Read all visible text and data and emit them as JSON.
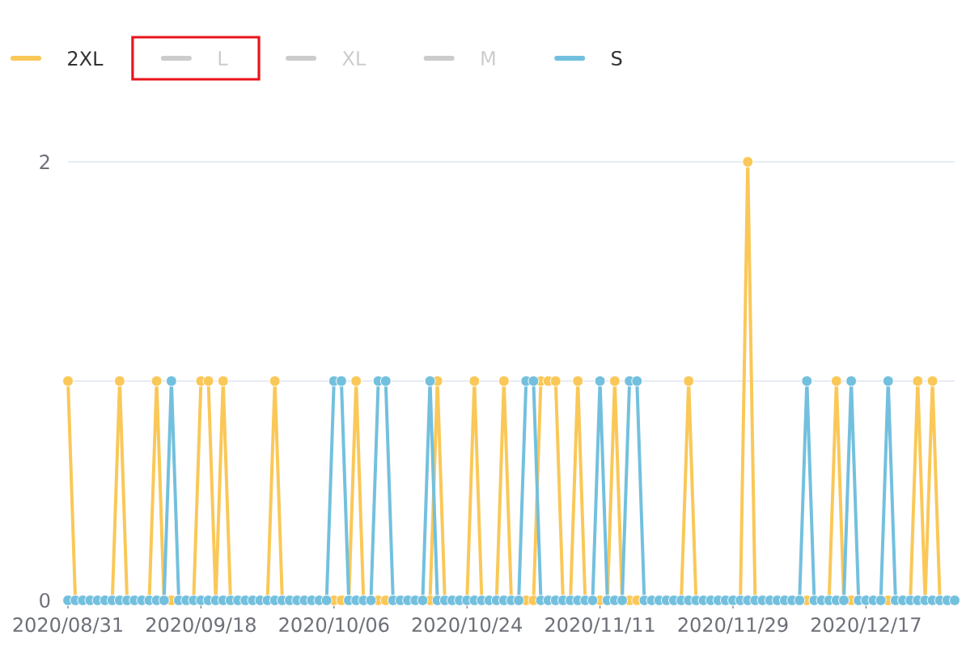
{
  "chart_data": {
    "type": "line",
    "categories": [
      "2020/08/31",
      null,
      null,
      null,
      null,
      null,
      null,
      null,
      null,
      null,
      null,
      null,
      null,
      null,
      null,
      null,
      null,
      null,
      "2020/09/18",
      null,
      null,
      null,
      null,
      null,
      null,
      null,
      null,
      null,
      null,
      null,
      null,
      null,
      null,
      null,
      null,
      null,
      "2020/10/06",
      null,
      null,
      null,
      null,
      null,
      null,
      null,
      null,
      null,
      null,
      null,
      null,
      null,
      null,
      null,
      null,
      null,
      "2020/10/24",
      null,
      null,
      null,
      null,
      null,
      null,
      null,
      null,
      null,
      null,
      null,
      null,
      null,
      null,
      null,
      null,
      null,
      "2020/11/11",
      null,
      null,
      null,
      null,
      null,
      null,
      null,
      null,
      null,
      null,
      null,
      null,
      null,
      null,
      null,
      null,
      null,
      "2020/11/29",
      null,
      null,
      null,
      null,
      null,
      null,
      null,
      null,
      null,
      null,
      null,
      null,
      null,
      null,
      null,
      null,
      null,
      "2020/12/17",
      null,
      null,
      null,
      null,
      null,
      null,
      null,
      null,
      null,
      null,
      null,
      null
    ],
    "series": [
      {
        "name": "2XL",
        "color": "#fac858",
        "values": [
          1,
          0,
          0,
          0,
          0,
          0,
          0,
          1,
          0,
          0,
          0,
          0,
          1,
          0,
          0,
          0,
          0,
          0,
          1,
          1,
          0,
          1,
          0,
          0,
          0,
          0,
          0,
          0,
          1,
          0,
          0,
          0,
          0,
          0,
          0,
          0,
          0,
          0,
          0,
          1,
          0,
          0,
          0,
          0,
          0,
          0,
          0,
          0,
          0,
          0,
          1,
          0,
          0,
          0,
          0,
          1,
          0,
          0,
          0,
          1,
          0,
          0,
          0,
          0,
          1,
          1,
          1,
          0,
          0,
          1,
          0,
          0,
          0,
          0,
          1,
          0,
          0,
          0,
          0,
          0,
          0,
          0,
          0,
          0,
          1,
          0,
          0,
          0,
          0,
          0,
          0,
          0,
          2,
          0,
          0,
          0,
          0,
          0,
          0,
          0,
          0,
          0,
          0,
          0,
          1,
          0,
          0,
          0,
          0,
          0,
          0,
          0,
          0,
          0,
          0,
          1,
          0,
          1,
          0,
          0,
          0
        ]
      },
      {
        "name": "L",
        "color": "#cccccc",
        "values": [
          null,
          null,
          null,
          null,
          null,
          null,
          null,
          null,
          null,
          null,
          null,
          null,
          null,
          null,
          null,
          null,
          null,
          null,
          null,
          null,
          null,
          null,
          null,
          null,
          null,
          null,
          null,
          null,
          null,
          null,
          null,
          null,
          null,
          null,
          null,
          null,
          null,
          null,
          null,
          null,
          null,
          null,
          null,
          null,
          null,
          null,
          null,
          null,
          null,
          null,
          null,
          null,
          null,
          null,
          null,
          null,
          null,
          null,
          null,
          null,
          null,
          null,
          null,
          null,
          null,
          null,
          null,
          null,
          null,
          null,
          null,
          null,
          null,
          null,
          null,
          null,
          null,
          null,
          null,
          null,
          null,
          null,
          null,
          null,
          null,
          null,
          null,
          null,
          null,
          null,
          null,
          null,
          null,
          null,
          null,
          null,
          null,
          null,
          null,
          null,
          null,
          null,
          null,
          null,
          null,
          null,
          null,
          null,
          null,
          null,
          null,
          null,
          null,
          null,
          null,
          null,
          null,
          null,
          null,
          null,
          null
        ]
      },
      {
        "name": "XL",
        "color": "#cccccc",
        "values": [
          null,
          null,
          null,
          null,
          null,
          null,
          null,
          null,
          null,
          null,
          null,
          null,
          null,
          null,
          null,
          null,
          null,
          null,
          null,
          null,
          null,
          null,
          null,
          null,
          null,
          null,
          null,
          null,
          null,
          null,
          null,
          null,
          null,
          null,
          null,
          null,
          null,
          null,
          null,
          null,
          null,
          null,
          null,
          null,
          null,
          null,
          null,
          null,
          null,
          null,
          null,
          null,
          null,
          null,
          null,
          null,
          null,
          null,
          null,
          null,
          null,
          null,
          null,
          null,
          null,
          null,
          null,
          null,
          null,
          null,
          null,
          null,
          null,
          null,
          null,
          null,
          null,
          null,
          null,
          null,
          null,
          null,
          null,
          null,
          null,
          null,
          null,
          null,
          null,
          null,
          null,
          null,
          null,
          null,
          null,
          null,
          null,
          null,
          null,
          null,
          null,
          null,
          null,
          null,
          null,
          null,
          null,
          null,
          null,
          null,
          null,
          null,
          null,
          null,
          null,
          null,
          null,
          null,
          null,
          null,
          null
        ]
      },
      {
        "name": "M",
        "color": "#cccccc",
        "values": [
          null,
          null,
          null,
          null,
          null,
          null,
          null,
          null,
          null,
          null,
          null,
          null,
          null,
          null,
          null,
          null,
          null,
          null,
          null,
          null,
          null,
          null,
          null,
          null,
          null,
          null,
          null,
          null,
          null,
          null,
          null,
          null,
          null,
          null,
          null,
          null,
          null,
          null,
          null,
          null,
          null,
          null,
          null,
          null,
          null,
          null,
          null,
          null,
          null,
          null,
          null,
          null,
          null,
          null,
          null,
          null,
          null,
          null,
          null,
          null,
          null,
          null,
          null,
          null,
          null,
          null,
          null,
          null,
          null,
          null,
          null,
          null,
          null,
          null,
          null,
          null,
          null,
          null,
          null,
          null,
          null,
          null,
          null,
          null,
          null,
          null,
          null,
          null,
          null,
          null,
          null,
          null,
          null,
          null,
          null,
          null,
          null,
          null,
          null,
          null,
          null,
          null,
          null,
          null,
          null,
          null,
          null,
          null,
          null,
          null,
          null,
          null,
          null,
          null,
          null,
          null,
          null,
          null,
          null,
          null,
          null
        ]
      },
      {
        "name": "S",
        "color": "#73c0de",
        "values": [
          0,
          0,
          0,
          0,
          0,
          0,
          0,
          0,
          0,
          0,
          0,
          0,
          0,
          0,
          1,
          0,
          0,
          0,
          0,
          0,
          0,
          0,
          0,
          0,
          0,
          0,
          0,
          0,
          0,
          0,
          0,
          0,
          0,
          0,
          0,
          0,
          1,
          1,
          0,
          0,
          0,
          0,
          1,
          1,
          0,
          0,
          0,
          0,
          0,
          1,
          0,
          0,
          0,
          0,
          0,
          0,
          0,
          0,
          0,
          0,
          0,
          0,
          1,
          1,
          0,
          0,
          0,
          0,
          0,
          0,
          0,
          0,
          1,
          0,
          0,
          0,
          1,
          1,
          0,
          0,
          0,
          0,
          0,
          0,
          0,
          0,
          0,
          0,
          0,
          0,
          0,
          0,
          0,
          0,
          0,
          0,
          0,
          0,
          0,
          0,
          1,
          0,
          0,
          0,
          0,
          0,
          1,
          0,
          0,
          0,
          0,
          1,
          0,
          0,
          0,
          0,
          0,
          0,
          0,
          0,
          0
        ]
      }
    ],
    "ylim": [
      0,
      2
    ],
    "yticks": [
      0,
      {
        "value": 1,
        "label": null
      },
      2
    ],
    "grid": "y",
    "legend": "top left",
    "marker": "circle",
    "line_style": "solid"
  }
}
